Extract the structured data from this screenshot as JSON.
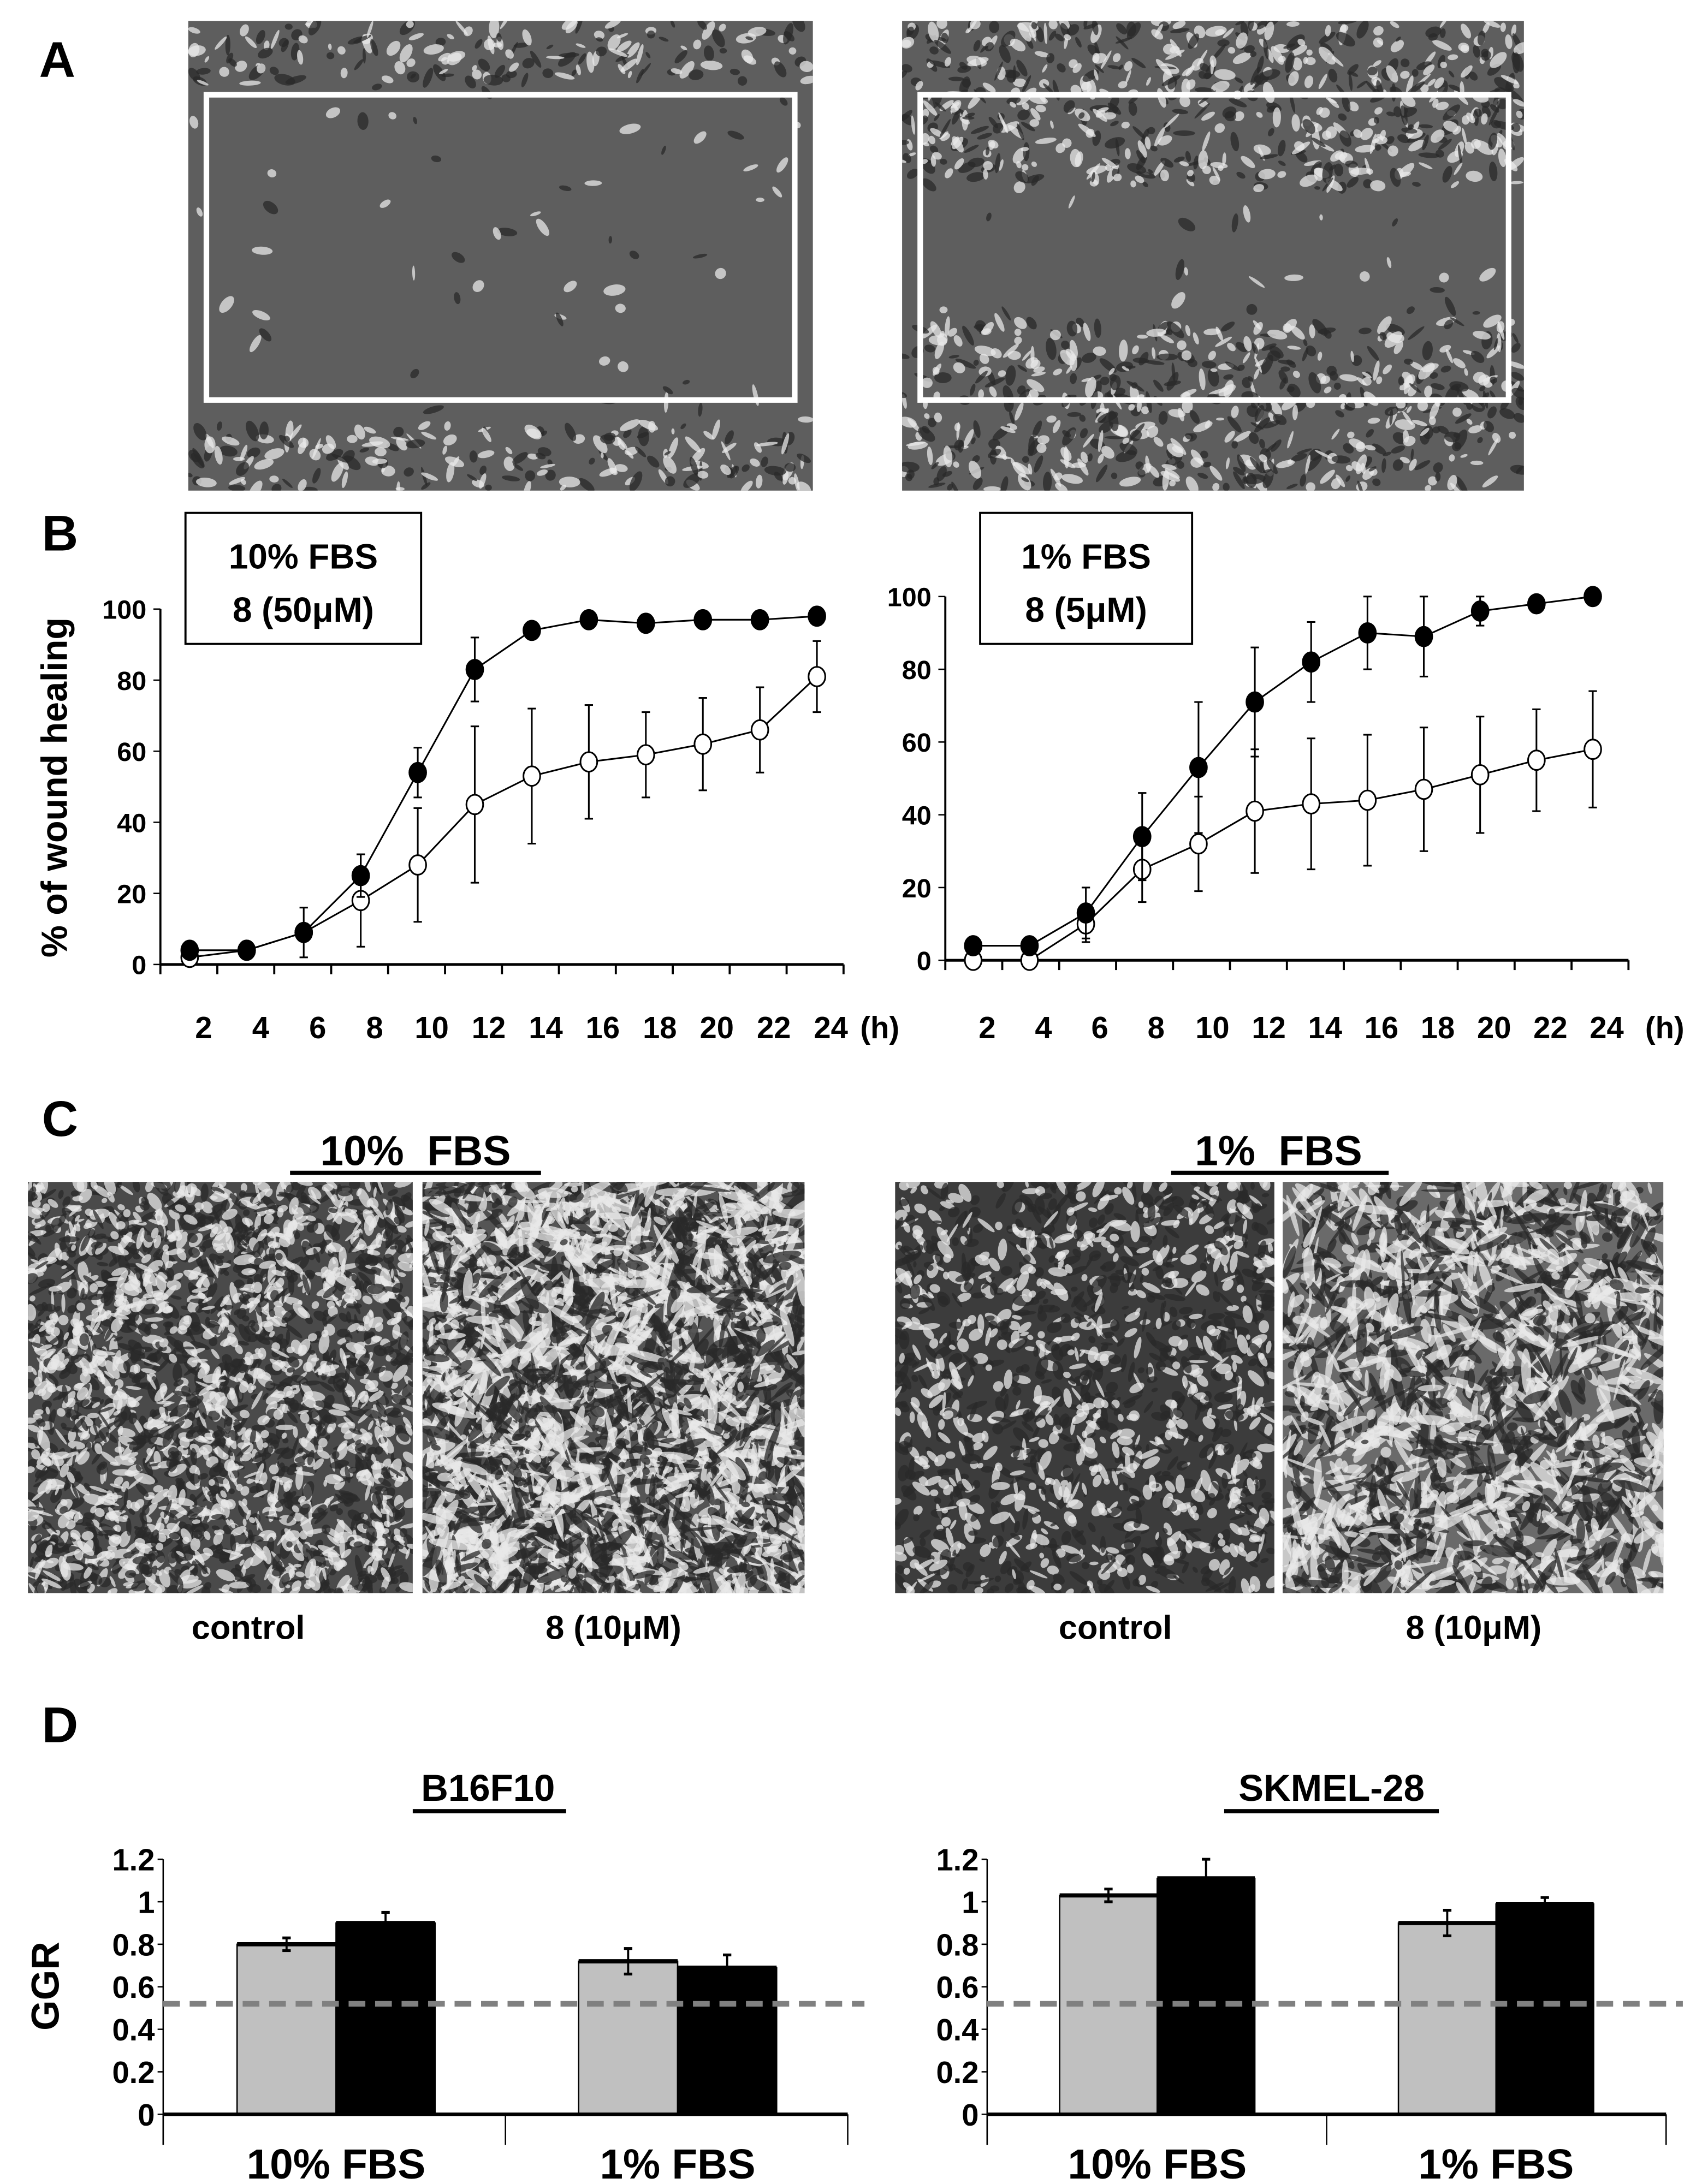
{
  "panels": {
    "a": "A",
    "b": "B",
    "c": "C",
    "d": "D"
  },
  "panel_c": {
    "left_title": "10%  FBS",
    "right_title": "1%  FBS",
    "captions": [
      "control",
      "8 (10μM)",
      "control",
      "8 (10μM)"
    ]
  },
  "panel_d_titles": [
    "B16F10",
    "SKMEL-28"
  ],
  "chart_data": [
    {
      "type": "line",
      "box_label": [
        "10% FBS",
        "8 (50μM)"
      ],
      "ylabel": "% of wound healing",
      "x_unit": "(h)",
      "x": [
        2,
        4,
        6,
        8,
        10,
        12,
        14,
        16,
        18,
        20,
        22,
        24
      ],
      "xticks": [
        "2",
        "4",
        "6",
        "8",
        "10",
        "12",
        "14",
        "16",
        "18",
        "20",
        "22",
        "24"
      ],
      "yticks": [
        "0",
        "20",
        "40",
        "60",
        "80",
        "100"
      ],
      "ylim": [
        0,
        100
      ],
      "series": [
        {
          "marker": "filled-circle",
          "values": [
            4,
            4,
            9,
            25,
            54,
            83,
            94,
            97,
            96,
            97,
            97,
            98
          ],
          "errors": [
            1,
            1,
            2,
            6,
            7,
            9,
            2,
            2,
            2,
            2,
            2,
            2
          ]
        },
        {
          "marker": "open-circle",
          "values": [
            2,
            4,
            9,
            18,
            28,
            45,
            53,
            57,
            59,
            62,
            66,
            81
          ],
          "errors": [
            1,
            1,
            7,
            13,
            16,
            22,
            19,
            16,
            12,
            13,
            12,
            10
          ]
        }
      ]
    },
    {
      "type": "line",
      "box_label": [
        "1% FBS",
        "8 (5μM)"
      ],
      "x_unit": "(h)",
      "x": [
        2,
        4,
        6,
        8,
        10,
        12,
        14,
        16,
        18,
        20,
        22,
        24
      ],
      "xticks": [
        "2",
        "4",
        "6",
        "8",
        "10",
        "12",
        "14",
        "16",
        "18",
        "20",
        "22",
        "24"
      ],
      "yticks": [
        "0",
        "20",
        "40",
        "60",
        "80",
        "100"
      ],
      "ylim": [
        0,
        100
      ],
      "series": [
        {
          "marker": "filled-circle",
          "values": [
            4,
            4,
            13,
            34,
            53,
            71,
            82,
            90,
            89,
            96,
            98,
            100
          ],
          "errors": [
            1,
            1,
            7,
            12,
            18,
            15,
            11,
            10,
            11,
            4,
            1,
            2
          ]
        },
        {
          "marker": "open-circle",
          "values": [
            0,
            0,
            10,
            25,
            32,
            41,
            43,
            44,
            47,
            51,
            55,
            58
          ],
          "errors": [
            0,
            0,
            5,
            9,
            13,
            17,
            18,
            18,
            17,
            16,
            14,
            16
          ]
        }
      ]
    },
    {
      "type": "bar",
      "title": "B16F10",
      "ylabel": "GGR",
      "categories": [
        "10%  FBS",
        "1%  FBS"
      ],
      "yticks": [
        "0",
        "0.2",
        "0.4",
        "0.6",
        "0.8",
        "1",
        "1.2"
      ],
      "ylim": [
        0,
        1.2
      ],
      "reference_line": 0.52,
      "colors": [
        "#c0c0c0",
        "#000000"
      ],
      "series": [
        {
          "values": [
            0.8,
            0.72
          ],
          "errors": [
            0.03,
            0.06
          ]
        },
        {
          "values": [
            0.9,
            0.69
          ],
          "errors": [
            0.05,
            0.06
          ]
        }
      ]
    },
    {
      "type": "bar",
      "title": "SKMEL-28",
      "categories": [
        "10%  FBS",
        "1%  FBS"
      ],
      "yticks": [
        "0",
        "0.2",
        "0.4",
        "0.6",
        "0.8",
        "1",
        "1.2"
      ],
      "ylim": [
        0,
        1.2
      ],
      "reference_line": 0.52,
      "colors": [
        "#c0c0c0",
        "#000000"
      ],
      "series": [
        {
          "values": [
            1.03,
            0.9
          ],
          "errors": [
            0.03,
            0.06
          ]
        },
        {
          "values": [
            1.11,
            0.99
          ],
          "errors": [
            0.09,
            0.03
          ]
        }
      ]
    }
  ]
}
